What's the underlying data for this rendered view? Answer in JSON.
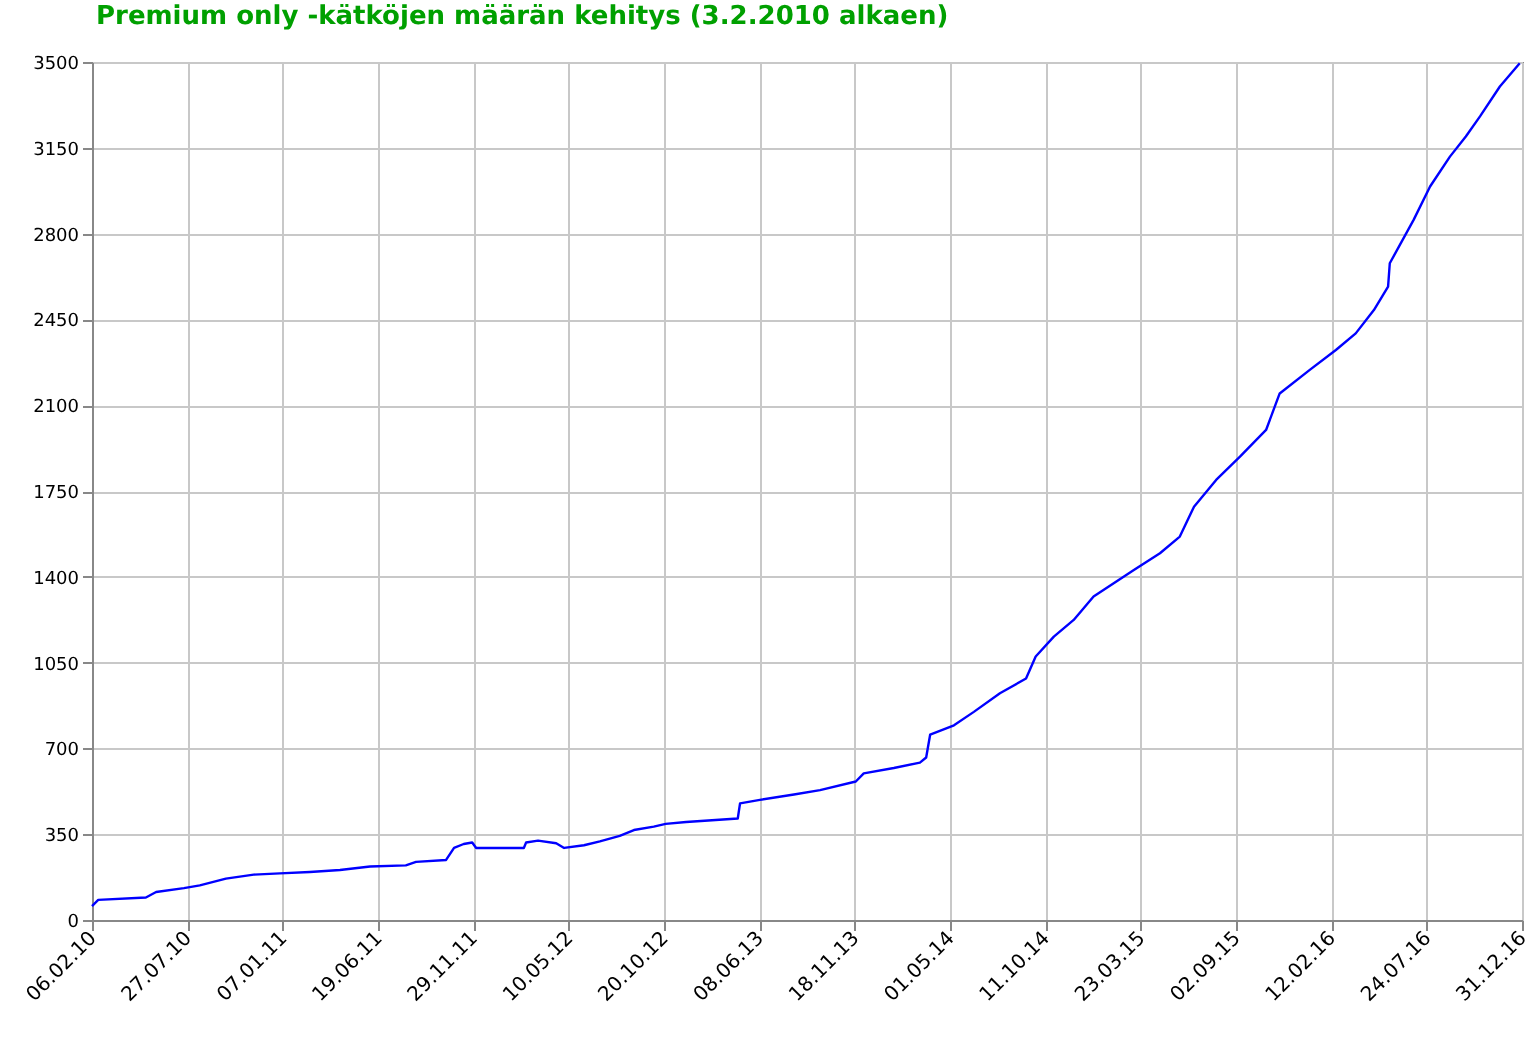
{
  "chart_data": {
    "type": "line",
    "title": "Premium only -kätköjen määrän kehitys (3.2.2010 alkaen)",
    "x": [
      "2010-02-06",
      "2010-02-17",
      "2010-05-12",
      "2010-05-30",
      "2010-07-18",
      "2010-08-15",
      "2010-09-30",
      "2010-11-18",
      "2011-01-03",
      "2011-02-25",
      "2011-04-19",
      "2011-06-11",
      "2011-08-13",
      "2011-08-31",
      "2011-10-23",
      "2011-11-06",
      "2011-11-23",
      "2011-12-08",
      "2011-12-15",
      "2012-03-08",
      "2012-03-12",
      "2012-04-02",
      "2012-05-04",
      "2012-05-18",
      "2012-06-22",
      "2012-07-20",
      "2012-08-24",
      "2012-09-18",
      "2012-10-23",
      "2012-11-13",
      "2012-12-19",
      "2013-02-09",
      "2013-03-20",
      "2013-03-24",
      "2013-04-28",
      "2013-06-27",
      "2013-08-12",
      "2013-10-14",
      "2013-10-28",
      "2013-12-20",
      "2014-02-04",
      "2014-02-15",
      "2014-02-22",
      "2014-04-05",
      "2014-05-10",
      "2014-06-25",
      "2014-08-10",
      "2014-08-27",
      "2014-09-28",
      "2014-11-02",
      "2014-12-07",
      "2015-02-16",
      "2015-04-03",
      "2015-05-08",
      "2015-06-02",
      "2015-07-11",
      "2015-08-22",
      "2015-10-07",
      "2015-10-31",
      "2015-12-23",
      "2016-02-07",
      "2016-03-13",
      "2016-04-14",
      "2016-05-09",
      "2016-05-12",
      "2016-06-23",
      "2016-07-22",
      "2016-08-26",
      "2016-09-23",
      "2016-10-18",
      "2016-11-22",
      "2016-12-27"
    ],
    "series": [
      {
        "color": "#0000ff",
        "values": [
          57,
          82,
          92,
          114,
          130,
          141,
          169,
          185,
          190,
          196,
          204,
          218,
          223,
          237,
          245,
          294,
          310,
          316,
          294,
          294,
          316,
          324,
          313,
          294,
          305,
          321,
          343,
          367,
          381,
          392,
          400,
          408,
          414,
          476,
          490,
          512,
          530,
          565,
          598,
          620,
          642,
          663,
          756,
          794,
          849,
          925,
          985,
          1075,
          1156,
          1224,
          1320,
          1428,
          1496,
          1564,
          1686,
          1795,
          1890,
          1999,
          2148,
          2244,
          2325,
          2393,
          2488,
          2584,
          2679,
          2856,
          2992,
          3114,
          3196,
          3278,
          3400,
          3495
        ]
      }
    ],
    "xlim": [
      "2010-02-06",
      "2016-12-31"
    ],
    "xticks": [
      {
        "value": "2010-02-06",
        "label": "06.02.10"
      },
      {
        "value": "2010-07-24",
        "label": "27.07.10"
      },
      {
        "value": "2011-01-08",
        "label": "07.01.11"
      },
      {
        "value": "2011-06-25",
        "label": "19.06.11"
      },
      {
        "value": "2011-12-10",
        "label": "29.11.11"
      },
      {
        "value": "2012-05-26",
        "label": "10.05.12"
      },
      {
        "value": "2012-11-10",
        "label": "20.10.12"
      },
      {
        "value": "2013-04-27",
        "label": "08.06.13"
      },
      {
        "value": "2013-10-12",
        "label": "18.11.13"
      },
      {
        "value": "2014-03-29",
        "label": "01.05.14"
      },
      {
        "value": "2014-09-13",
        "label": "11.10.14"
      },
      {
        "value": "2015-02-28",
        "label": "23.03.15"
      },
      {
        "value": "2015-08-15",
        "label": "02.09.15"
      },
      {
        "value": "2016-01-30",
        "label": "12.02.16"
      },
      {
        "value": "2016-07-16",
        "label": "24.07.16"
      },
      {
        "value": "2016-12-31",
        "label": "31.12.16"
      }
    ],
    "ylim": [
      0,
      3500
    ],
    "yticks": [
      0,
      350,
      700,
      1050,
      1400,
      1750,
      2100,
      2450,
      2800,
      3150,
      3500
    ],
    "grid": true
  }
}
